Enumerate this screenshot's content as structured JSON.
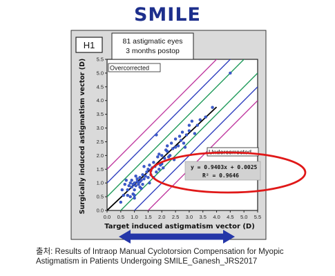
{
  "slide": {
    "title": "SMILE"
  },
  "colors": {
    "title": "#1d2f8c",
    "panel_bg": "#dadada",
    "plot_bg": "#ffffff",
    "points": "#3a5bd0",
    "fit_line": "#000000",
    "inner_band": "#1f9a5a",
    "middle_band": "#2e3fbf",
    "outer_band": "#c03aa0",
    "highlight_ellipse": "#e01818",
    "arrow": "#2436a8"
  },
  "chart_data": {
    "type": "scatter",
    "panel_label": "H1",
    "info_box": [
      "81 astigmatic eyes",
      "3 months postop"
    ],
    "xlabel": "Target induced astigmatism vector (D)",
    "ylabel": "Surgically induced astigmatism vector (D)",
    "xlim": [
      0,
      5.5
    ],
    "ylim": [
      0,
      5.5
    ],
    "xticks": [
      "0.0",
      "0.5",
      "1.0",
      "1.5",
      "2.0",
      "2.5",
      "3.0",
      "3.5",
      "4.0",
      "4.5",
      "5.0",
      "5.5"
    ],
    "yticks": [
      "0.0",
      "0.5",
      "1.0",
      "1.5",
      "2.0",
      "2.5",
      "3.0",
      "3.5",
      "4.0",
      "4.5",
      "5.0",
      "5.5"
    ],
    "region_labels": {
      "upper_left": "Overcorrected",
      "lower_right": "Undercorrected"
    },
    "equation": "y = 0.9403x + 0.0025",
    "r_squared": "R² = 0.9646",
    "fit": {
      "slope": 0.9403,
      "intercept": 0.0025
    },
    "reference_lines": [
      {
        "name": "inner",
        "offsets": [
          0.5,
          -0.5
        ]
      },
      {
        "name": "middle",
        "offsets": [
          1.0,
          -1.0
        ]
      },
      {
        "name": "outer",
        "offsets": [
          1.5,
          -1.5
        ]
      }
    ],
    "points": [
      [
        0.5,
        0.3
      ],
      [
        0.55,
        0.75
      ],
      [
        0.6,
        0.55
      ],
      [
        0.7,
        1.1
      ],
      [
        0.75,
        0.75
      ],
      [
        0.75,
        0.55
      ],
      [
        0.8,
        0.9
      ],
      [
        0.85,
        1.0
      ],
      [
        0.85,
        0.5
      ],
      [
        0.9,
        0.85
      ],
      [
        0.9,
        1.1
      ],
      [
        0.95,
        0.95
      ],
      [
        0.95,
        0.6
      ],
      [
        1.0,
        1.0
      ],
      [
        1.0,
        0.75
      ],
      [
        1.0,
        0.55
      ],
      [
        1.05,
        1.25
      ],
      [
        1.05,
        0.9
      ],
      [
        1.1,
        1.05
      ],
      [
        1.1,
        1.15
      ],
      [
        1.15,
        0.95
      ],
      [
        1.15,
        1.0
      ],
      [
        1.2,
        1.2
      ],
      [
        1.2,
        0.85
      ],
      [
        1.2,
        1.05
      ],
      [
        1.25,
        1.1
      ],
      [
        1.25,
        0.8
      ],
      [
        1.3,
        1.3
      ],
      [
        1.3,
        0.95
      ],
      [
        1.35,
        1.6
      ],
      [
        1.35,
        1.15
      ],
      [
        1.4,
        1.25
      ],
      [
        1.45,
        1.4
      ],
      [
        1.5,
        1.5
      ],
      [
        1.5,
        1.2
      ],
      [
        1.55,
        1.65
      ],
      [
        1.6,
        1.3
      ],
      [
        1.6,
        1.45
      ],
      [
        1.65,
        1.55
      ],
      [
        1.7,
        1.75
      ],
      [
        1.7,
        1.2
      ],
      [
        1.75,
        1.6
      ],
      [
        1.8,
        1.4
      ],
      [
        1.8,
        2.75
      ],
      [
        1.85,
        1.95
      ],
      [
        1.9,
        1.5
      ],
      [
        1.9,
        2.05
      ],
      [
        2.0,
        2.0
      ],
      [
        2.0,
        1.7
      ],
      [
        2.05,
        1.55
      ],
      [
        2.1,
        1.9
      ],
      [
        2.15,
        2.2
      ],
      [
        2.2,
        2.15
      ],
      [
        2.2,
        2.35
      ],
      [
        2.3,
        2.0
      ],
      [
        2.35,
        2.45
      ],
      [
        2.4,
        2.25
      ],
      [
        2.45,
        1.85
      ],
      [
        2.5,
        2.3
      ],
      [
        2.5,
        2.6
      ],
      [
        2.6,
        2.35
      ],
      [
        2.65,
        2.7
      ],
      [
        2.7,
        2.55
      ],
      [
        2.75,
        2.85
      ],
      [
        2.8,
        2.45
      ],
      [
        2.85,
        2.3
      ],
      [
        2.9,
        2.75
      ],
      [
        3.0,
        2.9
      ],
      [
        3.0,
        3.1
      ],
      [
        3.1,
        3.25
      ],
      [
        3.2,
        2.8
      ],
      [
        3.3,
        3.1
      ],
      [
        3.4,
        3.3
      ],
      [
        3.6,
        3.4
      ],
      [
        3.85,
        3.75
      ],
      [
        4.5,
        5.0
      ],
      [
        1.0,
        0.45
      ],
      [
        1.55,
        1.0
      ],
      [
        1.95,
        1.65
      ],
      [
        2.25,
        1.95
      ],
      [
        0.65,
        0.95
      ]
    ]
  },
  "overlay": {
    "highlight": "equation-ellipse",
    "arrow": "double-headed"
  },
  "caption": {
    "line1": "출처: Results of Intraop Manual Cyclotorsion Compensation for Myopic",
    "line2": "Astigmatism in Patients Undergoing SMILE_Ganesh_JRS2017"
  }
}
